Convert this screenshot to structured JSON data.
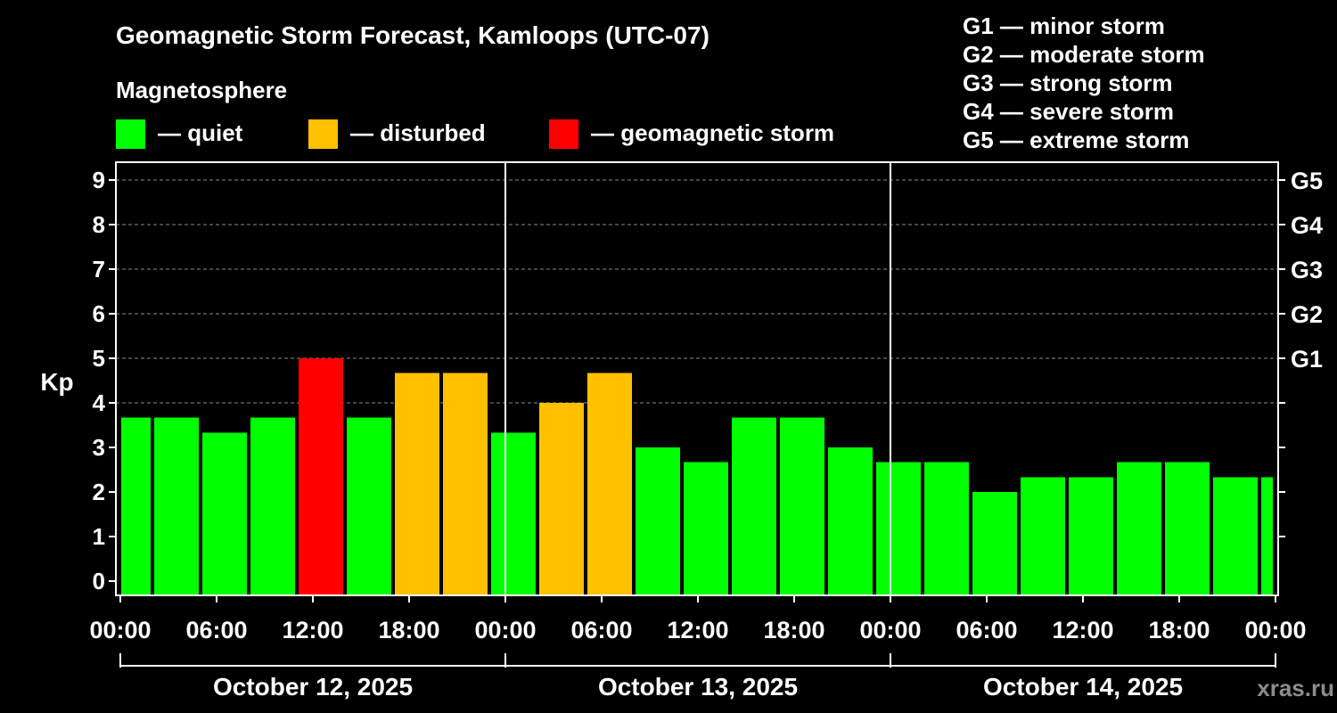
{
  "chart_data": {
    "type": "bar",
    "title": "Geomagnetic Storm Forecast, Kamloops (UTC-07)",
    "legend_title": "Magnetosphere",
    "legend": [
      {
        "key": "quiet",
        "label": "— quiet",
        "color": "#00ff00"
      },
      {
        "key": "disturbed",
        "label": "— disturbed",
        "color": "#ffc000"
      },
      {
        "key": "storm",
        "label": "— geomagnetic storm",
        "color": "#ff0000"
      }
    ],
    "g_scale_legend": [
      "G1 — minor storm",
      "G2 — moderate storm",
      "G3 — strong storm",
      "G4 — severe storm",
      "G5 — extreme storm"
    ],
    "ylabel": "Kp",
    "ylim": [
      0,
      9
    ],
    "y_ticks": [
      "0",
      "1",
      "2",
      "3",
      "4",
      "5",
      "6",
      "7",
      "8",
      "9"
    ],
    "right_ticks": [
      {
        "kp": 5,
        "label": "G1"
      },
      {
        "kp": 6,
        "label": "G2"
      },
      {
        "kp": 7,
        "label": "G3"
      },
      {
        "kp": 8,
        "label": "G4"
      },
      {
        "kp": 9,
        "label": "G5"
      }
    ],
    "x_tick_labels": [
      "00:00",
      "06:00",
      "12:00",
      "18:00",
      "00:00",
      "06:00",
      "12:00",
      "18:00",
      "00:00",
      "06:00",
      "12:00",
      "18:00",
      "00:00"
    ],
    "x_tick_hours": [
      0,
      6,
      12,
      18,
      24,
      30,
      36,
      42,
      48,
      54,
      60,
      66,
      72
    ],
    "days": [
      "October 12, 2025",
      "October 13, 2025",
      "October 14, 2025"
    ],
    "grid": "dashed horizontal at integer Kp 4–9",
    "bars": [
      {
        "start_hour": -1,
        "kp": 3.67,
        "level": "quiet"
      },
      {
        "start_hour": 2,
        "kp": 3.67,
        "level": "quiet"
      },
      {
        "start_hour": 5,
        "kp": 3.33,
        "level": "quiet"
      },
      {
        "start_hour": 8,
        "kp": 3.67,
        "level": "quiet"
      },
      {
        "start_hour": 11,
        "kp": 5.0,
        "level": "storm"
      },
      {
        "start_hour": 14,
        "kp": 3.67,
        "level": "quiet"
      },
      {
        "start_hour": 17,
        "kp": 4.67,
        "level": "disturbed"
      },
      {
        "start_hour": 20,
        "kp": 4.67,
        "level": "disturbed"
      },
      {
        "start_hour": 23,
        "kp": 3.33,
        "level": "quiet"
      },
      {
        "start_hour": 26,
        "kp": 4.0,
        "level": "disturbed"
      },
      {
        "start_hour": 29,
        "kp": 4.67,
        "level": "disturbed"
      },
      {
        "start_hour": 32,
        "kp": 3.0,
        "level": "quiet"
      },
      {
        "start_hour": 35,
        "kp": 2.67,
        "level": "quiet"
      },
      {
        "start_hour": 38,
        "kp": 3.67,
        "level": "quiet"
      },
      {
        "start_hour": 41,
        "kp": 3.67,
        "level": "quiet"
      },
      {
        "start_hour": 44,
        "kp": 3.0,
        "level": "quiet"
      },
      {
        "start_hour": 47,
        "kp": 2.67,
        "level": "quiet"
      },
      {
        "start_hour": 50,
        "kp": 2.67,
        "level": "quiet"
      },
      {
        "start_hour": 53,
        "kp": 2.0,
        "level": "quiet"
      },
      {
        "start_hour": 56,
        "kp": 2.33,
        "level": "quiet"
      },
      {
        "start_hour": 59,
        "kp": 2.33,
        "level": "quiet"
      },
      {
        "start_hour": 62,
        "kp": 2.67,
        "level": "quiet"
      },
      {
        "start_hour": 65,
        "kp": 2.67,
        "level": "quiet"
      },
      {
        "start_hour": 68,
        "kp": 2.33,
        "level": "quiet"
      },
      {
        "start_hour": 71,
        "kp": 2.33,
        "level": "quiet"
      }
    ],
    "watermark": "xras.ru"
  }
}
